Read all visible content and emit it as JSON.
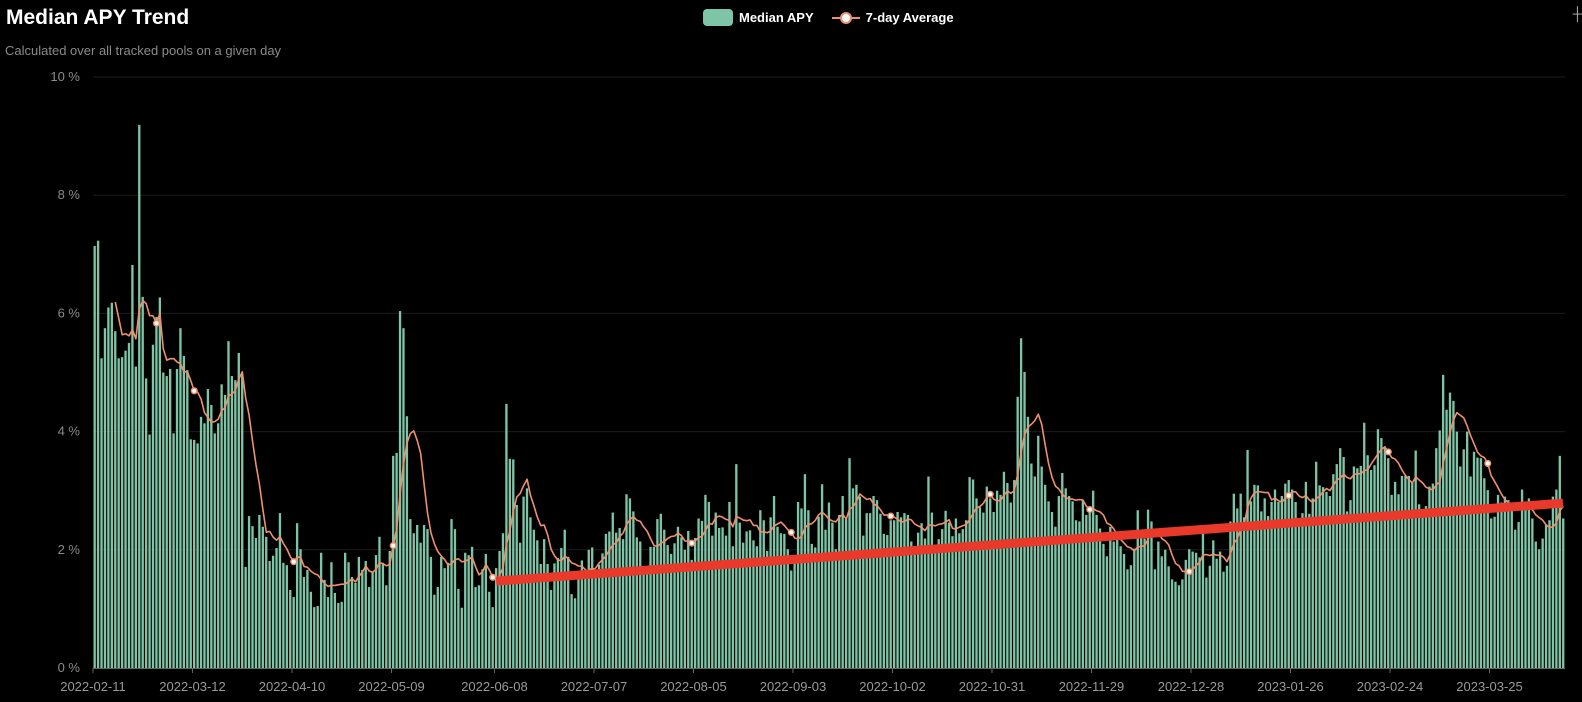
{
  "title": "Median APY Trend",
  "subtitle": "Calculated over all tracked pools on a given day",
  "toolbox": {
    "icon": "restore-icon",
    "glyph": "┼"
  },
  "legend": [
    {
      "label": "Median APY",
      "color": "#7ec4a6"
    },
    {
      "label": "7-day Average",
      "color": "#f0906a"
    }
  ],
  "chart_data": {
    "type": "bar",
    "title": "Median APY Trend",
    "subtitle": "Calculated over all tracked pools on a given day",
    "x_start": "2022-02-11",
    "x_step": "1 day",
    "x_tick_labels": [
      "2022-02-11",
      "2022-03-12",
      "2022-04-10",
      "2022-05-09",
      "2022-06-08",
      "2022-07-07",
      "2022-08-05",
      "2022-09-03",
      "2022-10-02",
      "2022-10-31",
      "2022-11-29",
      "2022-12-28",
      "2023-01-26",
      "2023-02-24",
      "2023-03-25"
    ],
    "y_tick_labels": [
      "0 %",
      "2 %",
      "4 %",
      "6 %",
      "8 %",
      "10 %"
    ],
    "ylim": [
      0,
      10
    ],
    "y_unit": "%",
    "grid": true,
    "legend_position": "top-center",
    "series": [
      {
        "name": "Median APY",
        "type": "bar",
        "color": "#7ec4a6",
        "values": [
          7.14,
          7.23,
          5.24,
          5.75,
          6.1,
          6.18,
          5.7,
          5.24,
          5.26,
          5.37,
          5.5,
          6.82,
          5.1,
          9.19,
          6.28,
          4.9,
          3.95,
          5.47,
          5.94,
          6.27,
          5.0,
          4.94,
          5.06,
          3.97,
          5.06,
          5.75,
          5.28,
          5.04,
          3.87,
          3.86,
          3.8,
          4.25,
          4.14,
          4.72,
          4.45,
          3.97,
          4.14,
          4.8,
          4.62,
          5.53,
          4.94,
          4.87,
          5.33,
          4.99,
          1.71,
          2.57,
          2.4,
          2.2,
          2.59,
          2.39,
          2.22,
          1.81,
          1.9,
          2.03,
          2.62,
          1.78,
          1.74,
          1.32,
          1.2,
          2.45,
          2.01,
          1.54,
          1.66,
          1.29,
          1.03,
          1.05,
          1.95,
          1.49,
          1.2,
          1.79,
          1.27,
          1.1,
          1.12,
          1.95,
          1.79,
          1.54,
          1.44,
          1.88,
          1.66,
          1.81,
          1.37,
          1.62,
          1.91,
          2.22,
          1.78,
          1.4,
          1.98,
          3.59,
          3.64,
          6.04,
          5.75,
          4.26,
          2.52,
          2.28,
          2.42,
          2.12,
          2.42,
          2.35,
          1.88,
          1.24,
          1.37,
          1.88,
          1.69,
          1.78,
          2.52,
          2.35,
          1.34,
          1.02,
          1.95,
          1.91,
          2.05,
          1.37,
          1.4,
          1.67,
          1.93,
          1.29,
          1.03,
          1.69,
          1.98,
          2.28,
          4.47,
          3.54,
          3.53,
          2.76,
          2.12,
          2.9,
          3.04,
          2.55,
          2.34,
          2.16,
          1.76,
          2.18,
          1.76,
          1.32,
          1.77,
          1.86,
          2.03,
          2.34,
          1.88,
          1.25,
          1.18,
          1.54,
          1.82,
          1.63,
          2.0,
          2.04,
          1.65,
          1.75,
          1.94,
          2.27,
          2.31,
          2.63,
          2.29,
          2.37,
          2.18,
          2.94,
          2.87,
          2.65,
          2.21,
          2.14,
          1.72,
          1.69,
          2.05,
          2.05,
          2.52,
          2.61,
          2.34,
          2.08,
          1.93,
          2.11,
          2.39,
          2.21,
          2.0,
          2.32,
          1.83,
          2.2,
          2.53,
          2.49,
          2.93,
          2.81,
          2.24,
          2.63,
          2.37,
          2.38,
          2.24,
          2.81,
          2.06,
          3.45,
          2.46,
          2.12,
          2.31,
          2.33,
          2.16,
          2.06,
          2.67,
          2.5,
          1.98,
          2.55,
          2.91,
          2.39,
          2.28,
          2.27,
          2.01,
          1.65,
          1.88,
          2.81,
          2.7,
          3.28,
          2.67,
          2.1,
          2.04,
          2.56,
          3.11,
          2.34,
          2.8,
          2.46,
          2.01,
          2.59,
          2.91,
          2.52,
          3.55,
          3.04,
          3.1,
          2.9,
          2.24,
          2.62,
          2.62,
          2.91,
          2.84,
          2.61,
          2.27,
          2.25,
          2.5,
          2.5,
          2.64,
          2.55,
          2.62,
          2.59,
          2.14,
          2.0,
          2.29,
          2.45,
          2.19,
          3.24,
          2.63,
          2.04,
          2.18,
          2.35,
          2.66,
          2.46,
          2.23,
          2.53,
          2.28,
          2.35,
          2.5,
          3.23,
          3.19,
          2.87,
          2.72,
          2.63,
          3.07,
          2.87,
          2.64,
          3.0,
          2.93,
          3.32,
          3.13,
          2.8,
          3.18,
          4.59,
          5.58,
          5.01,
          4.25,
          3.46,
          3.24,
          3.93,
          3.41,
          3.1,
          2.82,
          2.64,
          2.39,
          2.91,
          3.3,
          3.04,
          2.91,
          2.82,
          2.5,
          2.48,
          2.84,
          2.59,
          2.63,
          3.0,
          2.59,
          2.36,
          2.1,
          1.89,
          2.39,
          2.14,
          2.28,
          2.06,
          1.93,
          1.67,
          1.74,
          2.02,
          2.67,
          2.28,
          2.19,
          2.68,
          2.48,
          1.67,
          2.14,
          1.89,
          2.0,
          1.72,
          1.5,
          1.46,
          1.4,
          1.5,
          1.83,
          2.01,
          1.97,
          1.95,
          1.87,
          2.27,
          1.53,
          1.73,
          2.16,
          1.85,
          1.97,
          1.63,
          1.73,
          2.48,
          2.95,
          2.7,
          2.95,
          2.55,
          3.69,
          2.82,
          3.1,
          3.09,
          2.65,
          2.87,
          2.57,
          2.81,
          3.02,
          2.81,
          2.91,
          3.12,
          3.18,
          3.02,
          2.81,
          2.52,
          2.62,
          3.15,
          2.61,
          2.87,
          3.49,
          3.09,
          3.06,
          2.98,
          2.91,
          3.28,
          3.45,
          3.72,
          3.57,
          2.65,
          2.84,
          3.41,
          3.38,
          3.42,
          4.15,
          3.6,
          3.35,
          3.43,
          4.04,
          3.89,
          3.74,
          3.55,
          2.93,
          3.15,
          2.94,
          3.25,
          3.25,
          3.25,
          3.13,
          3.68,
          2.77,
          2.59,
          2.74,
          3.07,
          3.12,
          3.72,
          4.02,
          4.96,
          4.37,
          4.66,
          4.52,
          4.0,
          3.41,
          3.7,
          4.0,
          3.24,
          3.66,
          3.56,
          3.55,
          3.21,
          3.01,
          2.53,
          2.56,
          2.93,
          2.8,
          2.9,
          2.84,
          2.74,
          2.34,
          2.47,
          3.02,
          2.76,
          2.87,
          2.53,
          2.14,
          2.01,
          2.19,
          2.43,
          2.5,
          2.9,
          3.02,
          3.59,
          2.53
        ]
      },
      {
        "name": "7-day Average",
        "type": "line",
        "color": "#f0906a",
        "window_days": 7
      }
    ],
    "annotation_trend_line": {
      "color": "#e8392a",
      "start": {
        "x": "2022-06-08",
        "y": 1.47
      },
      "end": {
        "x": "last",
        "y": 2.79
      }
    }
  }
}
